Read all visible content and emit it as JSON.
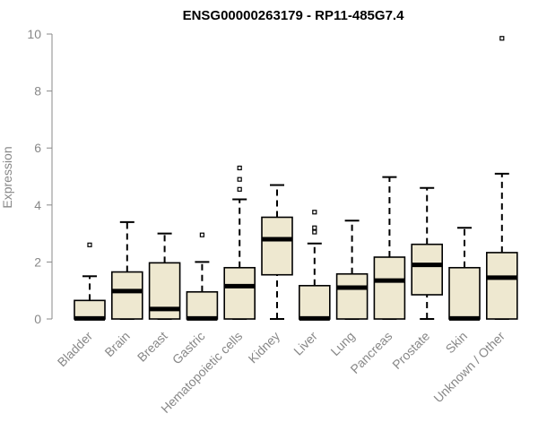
{
  "chart_data": {
    "type": "boxplot",
    "title": "ENSG00000263179 - RP11-485G7.4",
    "xlabel": "",
    "ylabel": "Expression",
    "ylim": [
      0,
      10
    ],
    "yticks": [
      0,
      2,
      4,
      6,
      8,
      10
    ],
    "grid": false,
    "legend": "none",
    "box_fill": "#EEE8D0",
    "box_stroke": "#000000",
    "categories": [
      "Bladder",
      "Brain",
      "Breast",
      "Gastric",
      "Hematopoietic cells",
      "Kidney",
      "Liver",
      "Lung",
      "Pancreas",
      "Prostate",
      "Skin",
      "Unknown / Other"
    ],
    "series": [
      {
        "boxes": [
          {
            "whisker_low": 0,
            "q1": 0,
            "median": 0.02,
            "q3": 0.65,
            "whisker_high": 1.5,
            "outliers": [
              2.6
            ]
          },
          {
            "whisker_low": 0,
            "q1": 0,
            "median": 0.98,
            "q3": 1.65,
            "whisker_high": 3.4,
            "outliers": []
          },
          {
            "whisker_low": 0,
            "q1": 0,
            "median": 0.35,
            "q3": 1.97,
            "whisker_high": 3.0,
            "outliers": []
          },
          {
            "whisker_low": 0,
            "q1": 0,
            "median": 0.02,
            "q3": 0.95,
            "whisker_high": 2.0,
            "outliers": [
              2.95
            ]
          },
          {
            "whisker_low": 0,
            "q1": 0,
            "median": 1.15,
            "q3": 1.8,
            "whisker_high": 4.2,
            "outliers": [
              4.55,
              4.9,
              5.3
            ]
          },
          {
            "whisker_low": 0,
            "q1": 1.55,
            "median": 2.8,
            "q3": 3.57,
            "whisker_high": 4.7,
            "outliers": []
          },
          {
            "whisker_low": 0,
            "q1": 0,
            "median": 0.02,
            "q3": 1.17,
            "whisker_high": 2.65,
            "outliers": [
              3.05,
              3.2,
              3.75
            ]
          },
          {
            "whisker_low": 0,
            "q1": 0,
            "median": 1.1,
            "q3": 1.58,
            "whisker_high": 3.45,
            "outliers": []
          },
          {
            "whisker_low": 0,
            "q1": 0,
            "median": 1.35,
            "q3": 2.17,
            "whisker_high": 4.98,
            "outliers": []
          },
          {
            "whisker_low": 0,
            "q1": 0.85,
            "median": 1.9,
            "q3": 2.62,
            "whisker_high": 4.6,
            "outliers": []
          },
          {
            "whisker_low": 0,
            "q1": 0,
            "median": 0.02,
            "q3": 1.8,
            "whisker_high": 3.2,
            "outliers": []
          },
          {
            "whisker_low": 0,
            "q1": 0,
            "median": 1.45,
            "q3": 2.33,
            "whisker_high": 5.1,
            "outliers": [
              9.85
            ]
          }
        ]
      }
    ]
  }
}
